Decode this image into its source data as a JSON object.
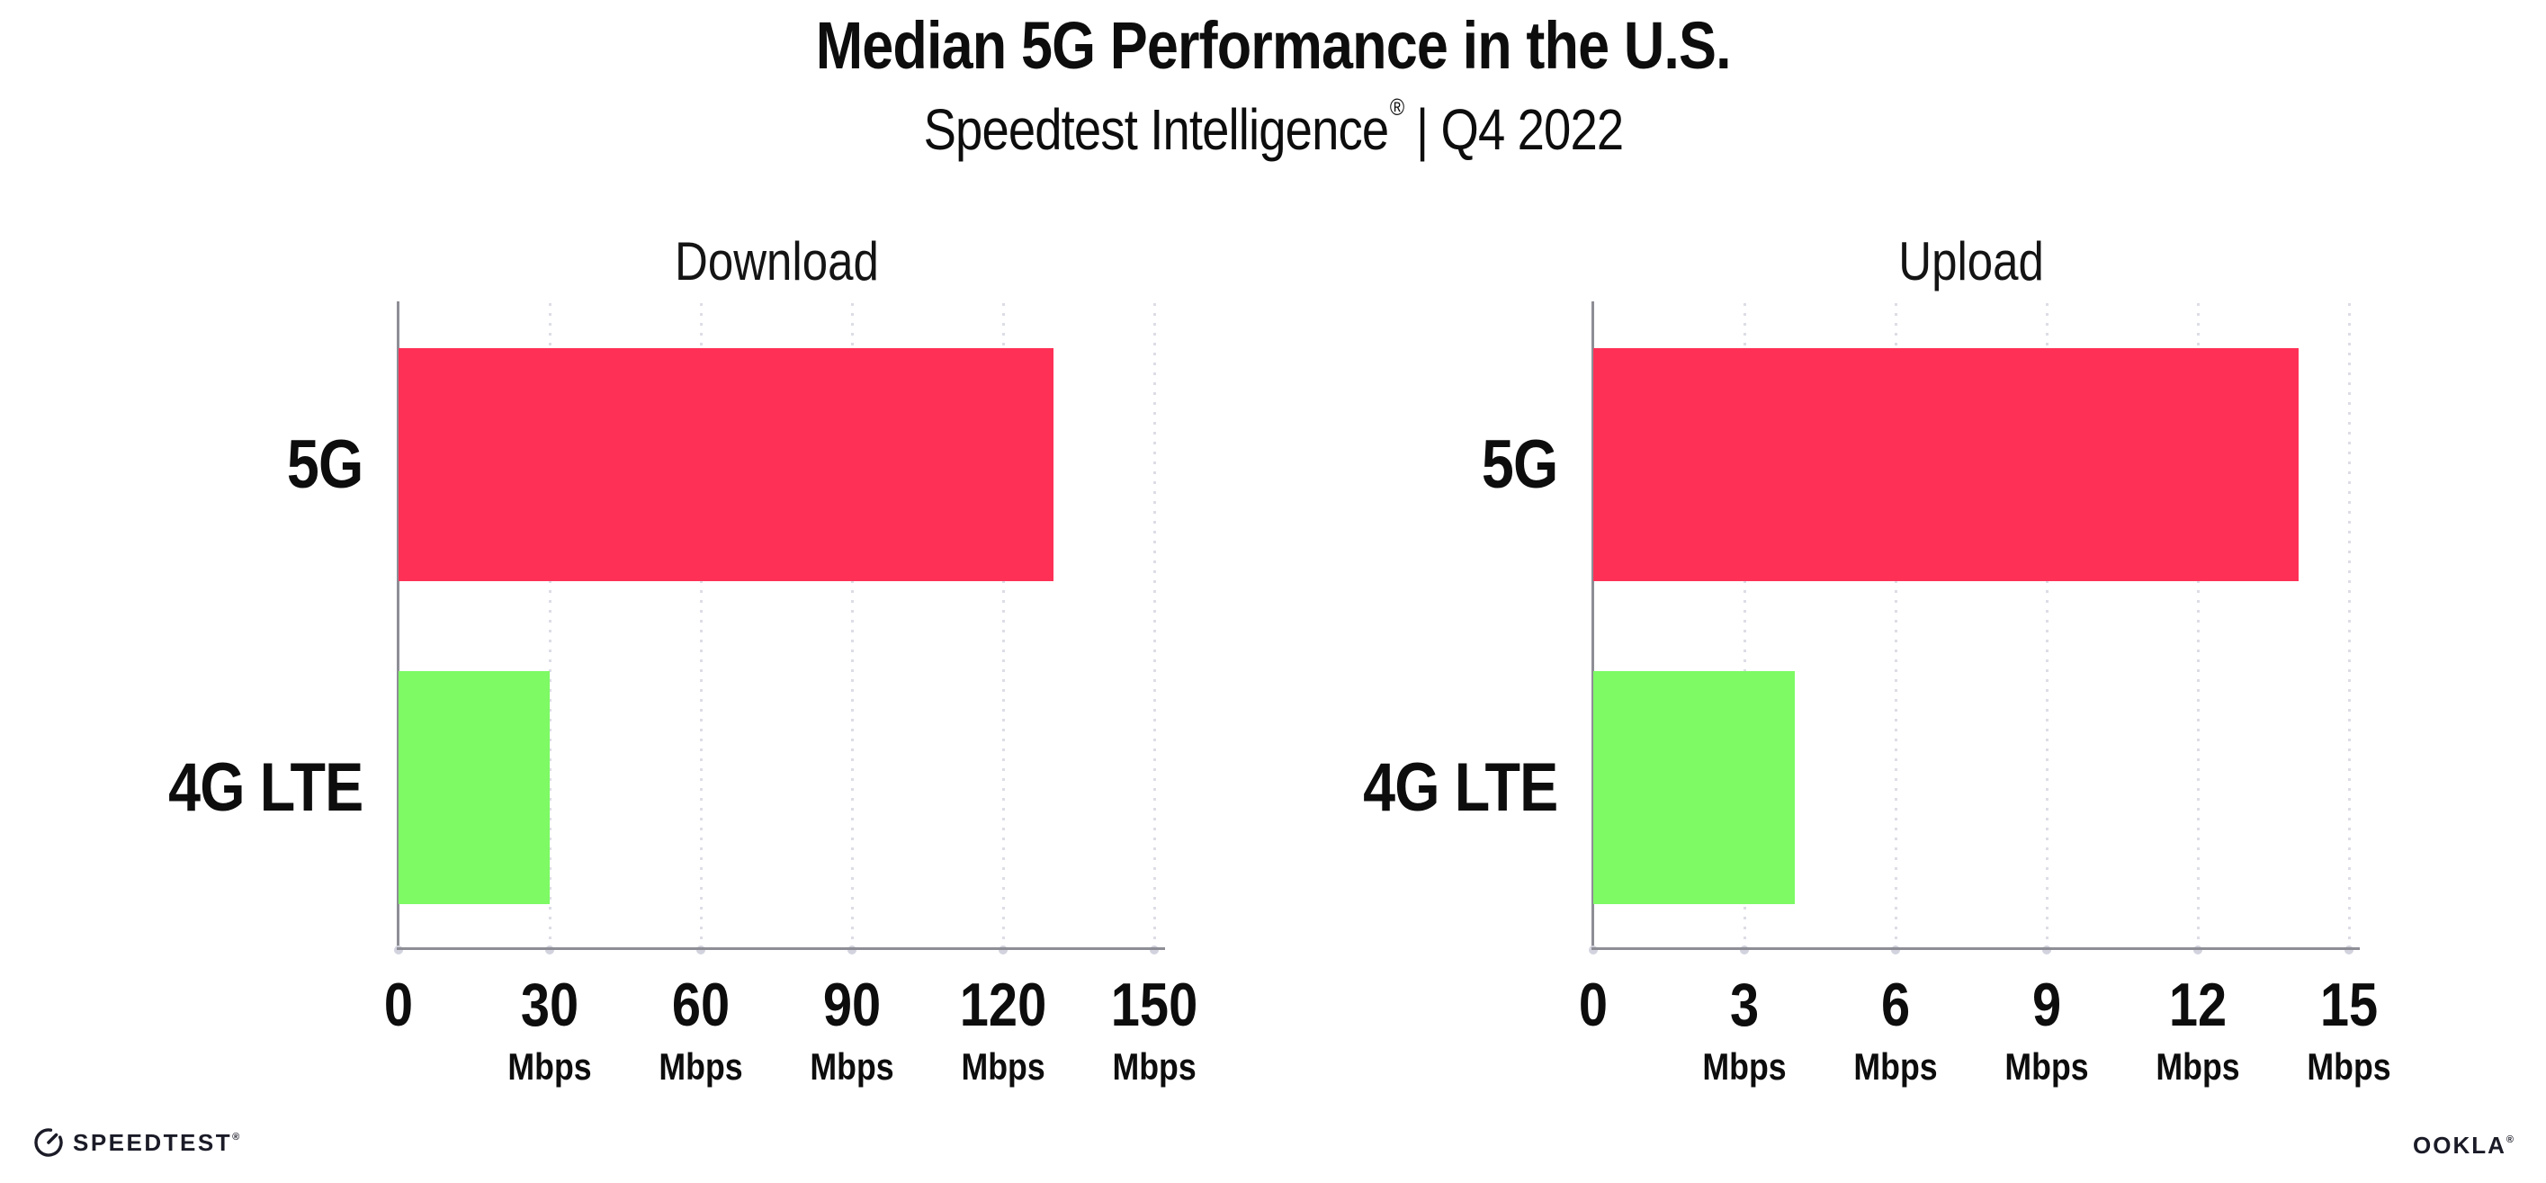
{
  "header": {
    "title": "Median 5G Performance in the U.S.",
    "subtitle_brand": "Speedtest Intelligence",
    "subtitle_reg_mark": "®",
    "subtitle_rest": "| Q4 2022"
  },
  "chart_data": [
    {
      "type": "bar",
      "orientation": "horizontal",
      "title": "Download",
      "categories": [
        "5G",
        "4G LTE"
      ],
      "values": [
        130,
        30
      ],
      "value_unit": "Mbps",
      "xlim": [
        0,
        150
      ],
      "xticks": [
        {
          "label": "0",
          "unit": ""
        },
        {
          "label": "30",
          "unit": "Mbps"
        },
        {
          "label": "60",
          "unit": "Mbps"
        },
        {
          "label": "90",
          "unit": "Mbps"
        },
        {
          "label": "120",
          "unit": "Mbps"
        },
        {
          "label": "150",
          "unit": "Mbps"
        }
      ],
      "series_colors": [
        "#FF3056",
        "#7DFA64"
      ],
      "grid": "vertical-dotted",
      "legend": "none"
    },
    {
      "type": "bar",
      "orientation": "horizontal",
      "title": "Upload",
      "categories": [
        "5G",
        "4G LTE"
      ],
      "values": [
        14,
        4
      ],
      "value_unit": "Mbps",
      "xlim": [
        0,
        15
      ],
      "xticks": [
        {
          "label": "0",
          "unit": ""
        },
        {
          "label": "3",
          "unit": "Mbps"
        },
        {
          "label": "6",
          "unit": "Mbps"
        },
        {
          "label": "9",
          "unit": "Mbps"
        },
        {
          "label": "12",
          "unit": "Mbps"
        },
        {
          "label": "15",
          "unit": "Mbps"
        }
      ],
      "series_colors": [
        "#FF3056",
        "#7DFA64"
      ],
      "grid": "vertical-dotted",
      "legend": "none"
    }
  ],
  "colors": {
    "bar_5g": "#FF3056",
    "bar_4g_lte": "#7DFA64",
    "axis": "#8E8E96",
    "gridline": "#DCDDE6",
    "text": "#0D0D0D"
  },
  "footer": {
    "speedtest_logo_text": "SPEEDTEST",
    "speedtest_reg_mark": "®",
    "ookla_logo_text": "OOKLA",
    "ookla_reg_mark": "®"
  }
}
